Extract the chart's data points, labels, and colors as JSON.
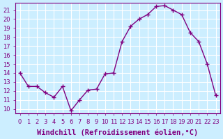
{
  "x": [
    0,
    1,
    2,
    3,
    4,
    5,
    6,
    7,
    8,
    9,
    10,
    11,
    12,
    13,
    14,
    15,
    16,
    17,
    18,
    19,
    20,
    21,
    22,
    23
  ],
  "y": [
    14,
    12.5,
    12.5,
    11.8,
    11.3,
    12.5,
    9.8,
    11.0,
    12.1,
    12.2,
    13.9,
    14.0,
    17.5,
    19.2,
    20.0,
    20.5,
    21.4,
    21.5,
    21.0,
    20.5,
    18.5,
    17.5,
    15.0,
    11.5
  ],
  "line_color": "#800080",
  "marker": "+",
  "marker_size": 4,
  "xlabel": "Windchill (Refroidissement éolien,°C)",
  "xlabel_fontsize": 7.5,
  "background_color": "#cceeff",
  "grid_color": "#ffffff",
  "tick_color": "#800080",
  "label_color": "#800080",
  "xlim": [
    -0.5,
    23.5
  ],
  "ylim": [
    9.5,
    21.8
  ],
  "yticks": [
    10,
    11,
    12,
    13,
    14,
    15,
    16,
    17,
    18,
    19,
    20,
    21
  ],
  "xticks": [
    0,
    1,
    2,
    3,
    4,
    5,
    6,
    7,
    8,
    9,
    10,
    11,
    12,
    13,
    14,
    15,
    16,
    17,
    18,
    19,
    20,
    21,
    22,
    23
  ],
  "tick_fontsize": 6,
  "linewidth": 1.0
}
